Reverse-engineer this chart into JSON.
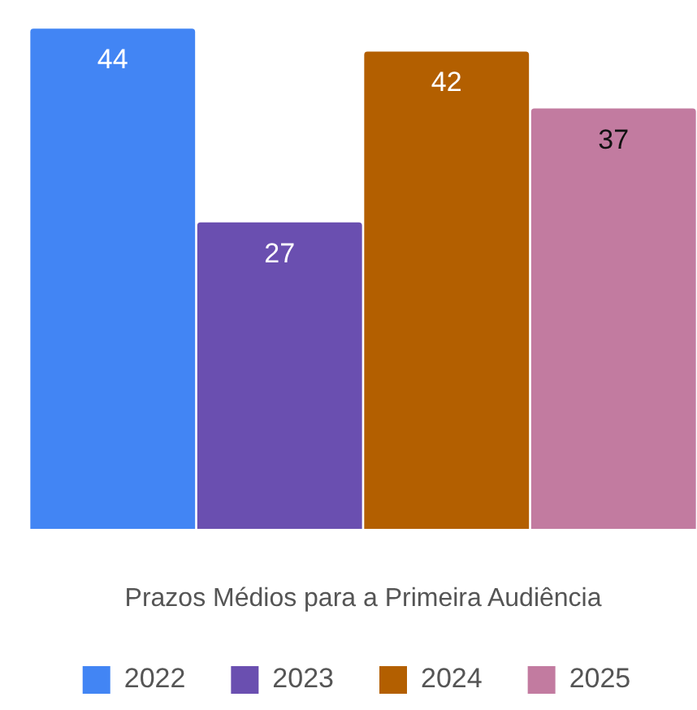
{
  "chart_data": {
    "type": "bar",
    "xlabel": "Prazos Médios para a Primeira Audiência",
    "categories": [
      null
    ],
    "series": [
      {
        "name": "2022",
        "color": "#4285f4",
        "values": [
          44
        ]
      },
      {
        "name": "2023",
        "color": "#6a4fb0",
        "values": [
          27
        ]
      },
      {
        "name": "2024",
        "color": "#b35f00",
        "values": [
          42
        ]
      },
      {
        "name": "2025",
        "color": "#c27ba0",
        "values": [
          37
        ]
      }
    ],
    "data_labels": true,
    "legend": "bottom",
    "grid": false,
    "relative": false
  }
}
